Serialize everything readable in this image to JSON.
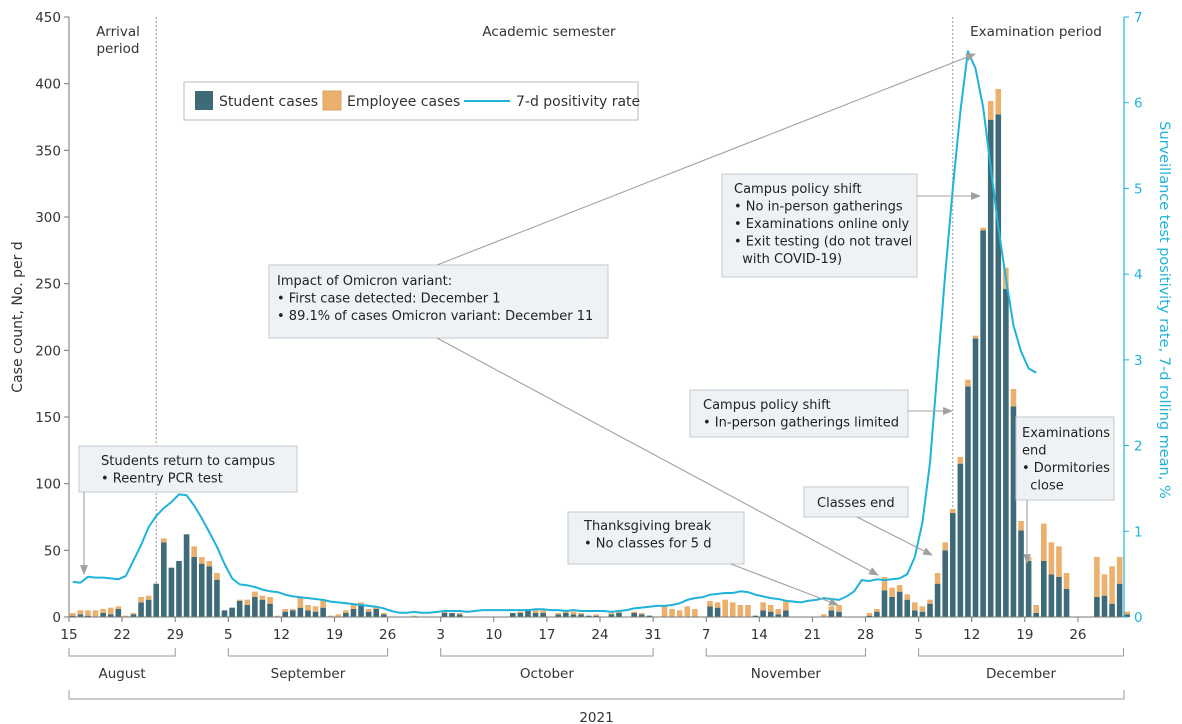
{
  "chart_data": {
    "type": "bar",
    "title": "",
    "xlabel": "2021",
    "ylabel": "Case count, No. per d",
    "y2label": "Surveillance test positivity rate, 7-d rolling mean, %",
    "ylim": [
      0,
      450
    ],
    "y2lim": [
      0,
      7
    ],
    "yticks": [
      0,
      50,
      100,
      150,
      200,
      250,
      300,
      350,
      400,
      450
    ],
    "y2ticks": [
      0,
      1,
      2,
      3,
      4,
      5,
      6,
      7
    ],
    "start_date": "2021-08-15",
    "x_tick_labels": [
      {
        "day": 0,
        "label": "15"
      },
      {
        "day": 7,
        "label": "22"
      },
      {
        "day": 14,
        "label": "29"
      },
      {
        "day": 21,
        "label": "5"
      },
      {
        "day": 28,
        "label": "12"
      },
      {
        "day": 35,
        "label": "19"
      },
      {
        "day": 42,
        "label": "26"
      },
      {
        "day": 49,
        "label": "3"
      },
      {
        "day": 56,
        "label": "10"
      },
      {
        "day": 63,
        "label": "17"
      },
      {
        "day": 70,
        "label": "24"
      },
      {
        "day": 77,
        "label": "31"
      },
      {
        "day": 84,
        "label": "7"
      },
      {
        "day": 91,
        "label": "14"
      },
      {
        "day": 98,
        "label": "21"
      },
      {
        "day": 105,
        "label": "28"
      },
      {
        "day": 112,
        "label": "5"
      },
      {
        "day": 119,
        "label": "12"
      },
      {
        "day": 126,
        "label": "19"
      },
      {
        "day": 133,
        "label": "26"
      }
    ],
    "months": [
      {
        "label": "August",
        "from": 0,
        "to": 14
      },
      {
        "label": "September",
        "from": 21,
        "to": 42
      },
      {
        "label": "October",
        "from": 49,
        "to": 77
      },
      {
        "label": "November",
        "from": 84,
        "to": 105
      },
      {
        "label": "December",
        "from": 112,
        "to": 139
      }
    ],
    "year_bracket": {
      "label": "2021",
      "from": 0,
      "to": 139
    },
    "legend": {
      "position": "top-left",
      "entries": [
        {
          "name": "Student cases",
          "kind": "bar",
          "color": "#3f6b78"
        },
        {
          "name": "Employee cases",
          "kind": "bar",
          "color": "#ecb06e"
        },
        {
          "name": "7-d positivity rate",
          "kind": "line",
          "color": "#1fb3d8"
        }
      ]
    },
    "series": [
      {
        "name": "Student cases",
        "values": [
          1,
          2,
          1,
          0,
          3,
          2,
          6,
          0,
          2,
          11,
          13,
          25,
          56,
          37,
          42,
          62,
          45,
          40,
          38,
          28,
          5,
          7,
          12,
          9,
          15,
          13,
          10,
          0,
          4,
          5,
          7,
          5,
          4,
          7,
          0,
          0,
          3,
          6,
          9,
          4,
          6,
          2,
          0,
          0,
          0,
          0,
          0,
          0,
          0,
          3,
          3,
          2,
          0,
          0,
          0,
          0,
          0,
          0,
          3,
          3,
          5,
          3,
          3,
          0,
          2,
          3,
          2,
          2,
          1,
          1,
          0,
          2,
          3,
          0,
          3,
          2,
          1,
          0,
          0,
          0,
          0,
          0,
          0,
          0,
          8,
          7,
          0,
          0,
          0,
          0,
          1,
          5,
          4,
          2,
          5,
          0,
          0,
          0,
          0,
          0,
          5,
          4,
          0,
          0,
          0,
          1,
          4,
          20,
          15,
          19,
          13,
          5,
          4,
          10,
          25,
          50,
          78,
          115,
          173,
          209,
          290,
          373,
          377,
          246,
          158,
          65,
          42,
          3,
          42,
          32,
          30,
          21,
          0,
          0,
          0,
          15,
          16,
          10,
          25,
          2
        ]
      },
      {
        "name": "Employee cases",
        "values": [
          2,
          3,
          4,
          5,
          3,
          5,
          2,
          1,
          1,
          4,
          3,
          0,
          3,
          0,
          0,
          0,
          8,
          5,
          4,
          5,
          0,
          0,
          1,
          4,
          4,
          3,
          5,
          1,
          2,
          1,
          8,
          4,
          4,
          6,
          1,
          2,
          2,
          4,
          2,
          2,
          2,
          1,
          0,
          0,
          0,
          1,
          0,
          0,
          0,
          1,
          0,
          1,
          0,
          0,
          0,
          0,
          0,
          0,
          0,
          1,
          1,
          2,
          2,
          0,
          1,
          1,
          2,
          1,
          0,
          1,
          0,
          1,
          2,
          0,
          1,
          1,
          0,
          0,
          8,
          6,
          5,
          8,
          6,
          0,
          4,
          4,
          13,
          11,
          9,
          9,
          0,
          6,
          5,
          4,
          7,
          0,
          0,
          0,
          0,
          2,
          3,
          5,
          0,
          0,
          0,
          2,
          2,
          10,
          7,
          5,
          4,
          6,
          4,
          3,
          8,
          6,
          3,
          5,
          5,
          2,
          2,
          14,
          19,
          16,
          13,
          7,
          3,
          6,
          28,
          24,
          23,
          12,
          0,
          0,
          0,
          30,
          16,
          28,
          20,
          2
        ]
      },
      {
        "name": "7-d positivity rate",
        "axis": "right",
        "values": [
          0.41,
          0.4,
          0.47,
          0.46,
          0.46,
          0.45,
          0.44,
          0.48,
          0.66,
          0.84,
          1.05,
          1.18,
          1.27,
          1.34,
          1.43,
          1.42,
          1.3,
          1.15,
          0.99,
          0.82,
          0.62,
          0.45,
          0.38,
          0.37,
          0.35,
          0.32,
          0.3,
          0.29,
          0.26,
          0.24,
          0.23,
          0.22,
          0.21,
          0.2,
          0.18,
          0.17,
          0.16,
          0.15,
          0.14,
          0.13,
          0.12,
          0.1,
          0.07,
          0.05,
          0.05,
          0.06,
          0.05,
          0.05,
          0.06,
          0.07,
          0.07,
          0.07,
          0.06,
          0.07,
          0.08,
          0.08,
          0.08,
          0.08,
          0.08,
          0.08,
          0.08,
          0.09,
          0.09,
          0.08,
          0.08,
          0.07,
          0.08,
          0.07,
          0.07,
          0.07,
          0.07,
          0.06,
          0.07,
          0.08,
          0.1,
          0.11,
          0.12,
          0.13,
          0.13,
          0.14,
          0.16,
          0.2,
          0.22,
          0.23,
          0.26,
          0.27,
          0.28,
          0.28,
          0.3,
          0.29,
          0.26,
          0.24,
          0.22,
          0.21,
          0.19,
          0.18,
          0.17,
          0.19,
          0.2,
          0.22,
          0.21,
          0.2,
          0.24,
          0.3,
          0.43,
          0.42,
          0.44,
          0.43,
          0.44,
          0.45,
          0.5,
          0.7,
          1.1,
          1.8,
          2.9,
          4.0,
          5.0,
          5.9,
          6.6,
          6.4,
          5.95,
          5.25,
          4.55,
          3.95,
          3.4,
          3.1,
          2.9,
          2.85
        ]
      }
    ],
    "vlines": [
      {
        "day": 11.5
      },
      {
        "day": 116.5
      }
    ],
    "period_labels": [
      {
        "text": [
          "Arrival",
          "period"
        ],
        "day": 4
      },
      {
        "text": [
          "Academic semester"
        ],
        "day": 63
      },
      {
        "text": [
          "Examination period"
        ],
        "day": 126
      }
    ],
    "annotations": [
      {
        "id": "students-return",
        "lines": [
          "Students return to campus",
          "• Reentry PCR test"
        ]
      },
      {
        "id": "omicron",
        "lines": [
          "Impact of Omicron variant:",
          "• First case detected: December 1",
          "• 89.1% of cases Omicron variant: December 11"
        ]
      },
      {
        "id": "policy-shift-2",
        "lines": [
          "Campus policy shift",
          "• No in-person gatherings",
          "• Examinations online only",
          "• Exit testing (do not travel",
          "  with COVID-19)"
        ]
      },
      {
        "id": "policy-shift-1",
        "lines": [
          "Campus policy shift",
          "• In-person gatherings limited"
        ]
      },
      {
        "id": "thanksgiving",
        "lines": [
          "Thanksgiving break",
          "• No classes for 5 d"
        ]
      },
      {
        "id": "classes-end",
        "lines": [
          "Classes end"
        ]
      },
      {
        "id": "exams-end",
        "lines": [
          "Examinations",
          "end",
          "• Dormitories",
          "  close"
        ]
      }
    ]
  }
}
